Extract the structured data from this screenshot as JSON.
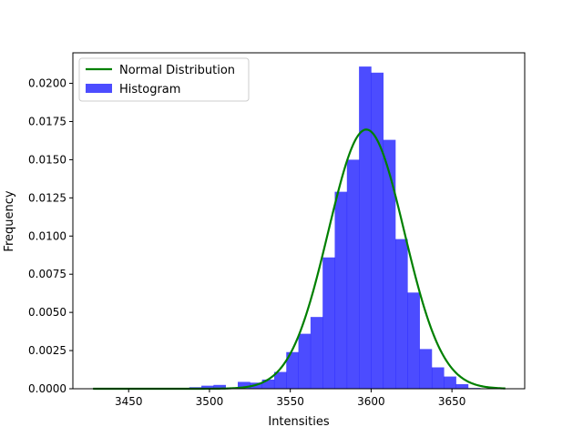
{
  "chart_data": {
    "type": "bar",
    "title": "",
    "xlabel": "Intensities",
    "ylabel": "Frequency",
    "xlim": [
      3415.5,
      3695
    ],
    "ylim": [
      0,
      0.022
    ],
    "x_ticks": [
      "3450",
      "3500",
      "3550",
      "3600",
      "3650"
    ],
    "x_tick_values": [
      3450,
      3500,
      3550,
      3600,
      3650
    ],
    "y_ticks": [
      "0.0000",
      "0.0025",
      "0.0050",
      "0.0075",
      "0.0100",
      "0.0125",
      "0.0150",
      "0.0175",
      "0.0200"
    ],
    "y_tick_values": [
      0,
      0.0025,
      0.005,
      0.0075,
      0.01,
      0.0125,
      0.015,
      0.0175,
      0.02
    ],
    "legend_position": "top-left",
    "grid": false,
    "histogram": {
      "name": "Histogram",
      "color": "#0000ff",
      "opacity": 0.7,
      "bin_edges": [
        3480,
        3487.5,
        3495,
        3502.5,
        3510,
        3517.5,
        3525,
        3532.5,
        3540,
        3547.5,
        3555,
        3562.5,
        3570,
        3577.5,
        3585,
        3592.5,
        3600,
        3607.5,
        3615,
        3622.5,
        3630,
        3637.5,
        3645,
        3652.5,
        3660,
        3667.5
      ],
      "values": [
        5e-05,
        0.0001,
        0.0002,
        0.00025,
        0.0,
        0.00045,
        0.0004,
        0.0006,
        0.0011,
        0.0024,
        0.0036,
        0.0047,
        0.0086,
        0.0129,
        0.015,
        0.0211,
        0.0207,
        0.0163,
        0.0098,
        0.0063,
        0.0026,
        0.0014,
        0.0008,
        0.0003,
        5e-05
      ]
    },
    "normal_curve": {
      "name": "Normal Distribution",
      "color": "#008000",
      "mean": 3597,
      "std": 23.5,
      "x_range": [
        3428,
        3683
      ]
    }
  }
}
